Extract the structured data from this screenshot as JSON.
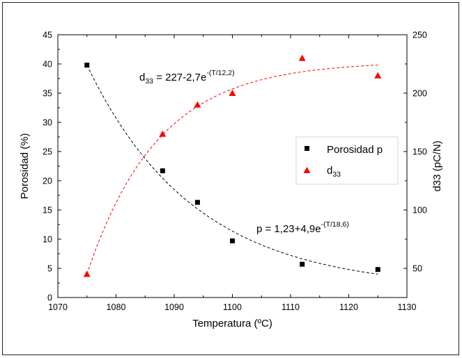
{
  "chart_data": {
    "type": "scatter",
    "x_axis": {
      "label": "Temperatura (ºC)",
      "range": [
        1070,
        1130
      ],
      "ticks": [
        "1070",
        "1080",
        "1090",
        "1100",
        "1110",
        "1120",
        "1130"
      ]
    },
    "y_left_axis": {
      "label": "Porosidad (%)",
      "range": [
        0,
        45
      ],
      "ticks": [
        "0",
        "5",
        "10",
        "15",
        "20",
        "25",
        "30",
        "35",
        "40",
        "45"
      ]
    },
    "y_right_axis": {
      "label": "d33 (pC/N)",
      "range": [
        25,
        250
      ],
      "ticks": [
        "50",
        "100",
        "150",
        "200",
        "250"
      ]
    },
    "series": [
      {
        "name": "Porosidad p",
        "axis": "left",
        "marker": "square",
        "color": "#000000",
        "x": [
          1075,
          1088,
          1094,
          1100,
          1112,
          1125
        ],
        "y": [
          39.8,
          21.7,
          16.3,
          9.7,
          5.7,
          4.8
        ]
      },
      {
        "name": "d33",
        "axis": "right",
        "marker": "triangle",
        "color": "#ff0000",
        "x": [
          1075,
          1088,
          1094,
          1100,
          1112,
          1125
        ],
        "y": [
          45,
          165,
          190,
          200,
          230,
          215
        ]
      }
    ],
    "fits": [
      {
        "series": "Porosidad p",
        "color": "#000000",
        "style": "dashed",
        "x": [
          1075,
          1125
        ],
        "y": [
          39.8,
          4.0
        ]
      },
      {
        "series": "d33",
        "color": "#ff0000",
        "style": "dashed",
        "x": [
          1075,
          1125
        ],
        "y": [
          45,
          224
        ]
      }
    ],
    "annotations": {
      "d33_eq": {
        "base": "d",
        "sub": "33",
        "text": " = 227-2,7e",
        "sup": "-(T/12,2)"
      },
      "p_eq": {
        "text": "p = 1,23+4,9e",
        "sup": "-(T/18,6)"
      }
    },
    "legend": {
      "placement": "right-middle",
      "entries": [
        {
          "label": "Porosidad p",
          "marker": "square",
          "color": "#000000"
        },
        {
          "base": "d",
          "sub": "33",
          "marker": "triangle",
          "color": "#ff0000"
        }
      ]
    },
    "grid": false
  }
}
